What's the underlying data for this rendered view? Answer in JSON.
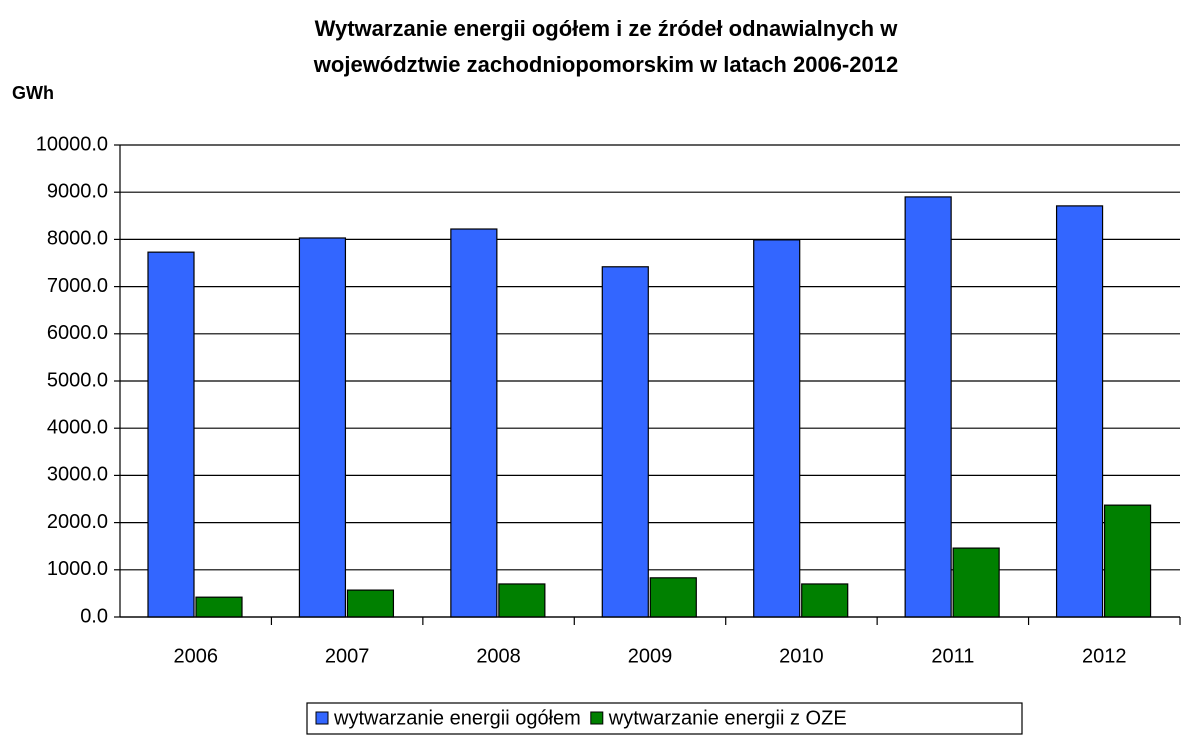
{
  "chart_data": {
    "type": "bar",
    "title": [
      "Wytwarzanie energii ogółem i ze źródeł odnawialnych w",
      "województwie zachodniopomorskim w latach 2006-2012"
    ],
    "y_label": "GWh",
    "categories": [
      "2006",
      "2007",
      "2008",
      "2009",
      "2010",
      "2011",
      "2012"
    ],
    "series": [
      {
        "name": "wytwarzanie energii ogółem",
        "color": "#3366ff",
        "values": [
          7730,
          8030,
          8220,
          7420,
          7990,
          8900,
          8710
        ]
      },
      {
        "name": "wytwarzanie energii z OZE",
        "color": "#008000",
        "values": [
          420,
          570,
          700,
          830,
          700,
          1460,
          2370
        ]
      }
    ],
    "ylim": [
      0,
      10000
    ],
    "yticks": [
      {
        "value": 0,
        "label": "0.0"
      },
      {
        "value": 1000,
        "label": "1000.0"
      },
      {
        "value": 2000,
        "label": "2000.0"
      },
      {
        "value": 3000,
        "label": "3000.0"
      },
      {
        "value": 4000,
        "label": "4000.0"
      },
      {
        "value": 5000,
        "label": "5000.0"
      },
      {
        "value": 6000,
        "label": "6000.0"
      },
      {
        "value": 7000,
        "label": "7000.0"
      },
      {
        "value": 8000,
        "label": "8000.0"
      },
      {
        "value": 9000,
        "label": "9000.0"
      },
      {
        "value": 10000,
        "label": "10000.0"
      }
    ],
    "grid": true,
    "legend": "bottom"
  }
}
